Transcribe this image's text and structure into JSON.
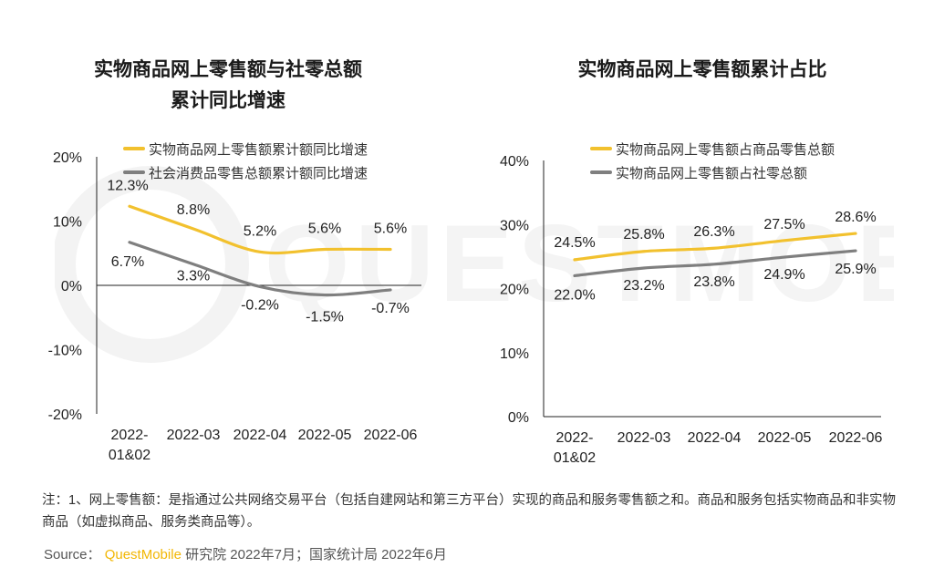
{
  "left_title_line1": "实物商品网上零售额与社零总额",
  "left_title_line2": "累计同比增速",
  "right_title": "实物商品网上零售额累计占比",
  "watermark_text": "QUESTMOBILE",
  "note": "注：1、网上零售额：是指通过公共网络交易平台（包括自建网站和第三方平台）实现的商品和服务零售额之和。商品和服务包括实物商品和非实物商品（如虚拟商品、服务类商品等）。",
  "source_prefix": "Source：",
  "source_brand": "QuestMobile",
  "source_rest": "研究院 2022年7月；国家统计局 2022年6月",
  "colors": {
    "yellow": "#f2c12e",
    "gray": "#7f7f7f",
    "brand": "#f2b705"
  },
  "chart_data": [
    {
      "type": "line",
      "title": "实物商品网上零售额与社零总额累计同比增速",
      "categories": [
        "2022-\n01&02",
        "2022-03",
        "2022-04",
        "2022-05",
        "2022-06"
      ],
      "ylim": [
        -20,
        20
      ],
      "yticks": [
        20,
        10,
        0,
        -10,
        -20
      ],
      "ytick_labels": [
        "20%",
        "10%",
        "0%",
        "-10%",
        "-20%"
      ],
      "legend_position": "top",
      "grid": false,
      "series": [
        {
          "name": "实物商品网上零售额累计额同比增速",
          "color": "#f2c12e",
          "values": [
            12.3,
            8.8,
            5.2,
            5.6,
            5.6
          ],
          "labels": [
            "12.3%",
            "8.8%",
            "5.2%",
            "5.6%",
            "5.6%"
          ]
        },
        {
          "name": "社会消费品零售总额累计额同比增速",
          "color": "#7f7f7f",
          "values": [
            6.7,
            3.3,
            -0.2,
            -1.5,
            -0.7
          ],
          "labels": [
            "6.7%",
            "3.3%",
            "-0.2%",
            "-1.5%",
            "-0.7%"
          ]
        }
      ]
    },
    {
      "type": "line",
      "title": "实物商品网上零售额累计占比",
      "categories": [
        "2022-\n01&02",
        "2022-03",
        "2022-04",
        "2022-05",
        "2022-06"
      ],
      "ylim": [
        0,
        40
      ],
      "yticks": [
        40,
        30,
        20,
        10,
        0
      ],
      "ytick_labels": [
        "40%",
        "30%",
        "20%",
        "10%",
        "0%"
      ],
      "legend_position": "top",
      "grid": false,
      "series": [
        {
          "name": "实物商品网上零售额占商品零售总额",
          "color": "#f2c12e",
          "values": [
            24.5,
            25.8,
            26.3,
            27.5,
            28.6
          ],
          "labels": [
            "24.5%",
            "25.8%",
            "26.3%",
            "27.5%",
            "28.6%"
          ]
        },
        {
          "name": "实物商品网上零售额占社零总额",
          "color": "#7f7f7f",
          "values": [
            22.0,
            23.2,
            23.8,
            24.9,
            25.9
          ],
          "labels": [
            "22.0%",
            "23.2%",
            "23.8%",
            "24.9%",
            "25.9%"
          ]
        }
      ]
    }
  ]
}
